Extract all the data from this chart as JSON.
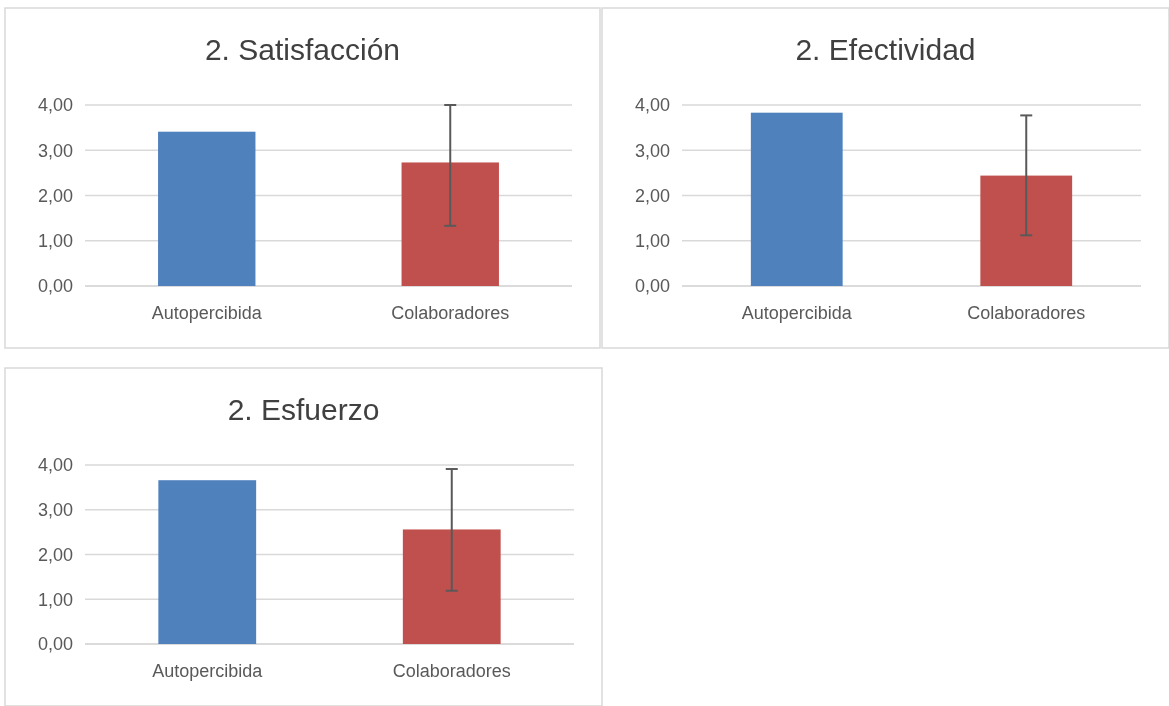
{
  "chart_data": [
    {
      "type": "bar",
      "title": "2. Satisfacción",
      "categories": [
        "Autopercibida",
        "Colaboradores"
      ],
      "values": [
        3.41,
        2.73
      ],
      "colors": [
        "#4f81bd",
        "#c0504d"
      ],
      "errors": [
        null,
        [
          1.33,
          4.0
        ]
      ],
      "ylim": [
        0,
        4
      ],
      "yticks": [
        {
          "value": 0,
          "label": "0,00"
        },
        {
          "value": 1,
          "label": "1,00"
        },
        {
          "value": 2,
          "label": "2,00"
        },
        {
          "value": 3,
          "label": "3,00"
        },
        {
          "value": 4,
          "label": "4,00"
        }
      ],
      "grid": "y"
    },
    {
      "type": "bar",
      "title": "2. Efectividad",
      "categories": [
        "Autopercibida",
        "Colaboradores"
      ],
      "values": [
        3.83,
        2.44
      ],
      "colors": [
        "#4f81bd",
        "#c0504d"
      ],
      "errors": [
        null,
        [
          1.12,
          3.77
        ]
      ],
      "ylim": [
        0,
        4
      ],
      "yticks": [
        {
          "value": 0,
          "label": "0,00"
        },
        {
          "value": 1,
          "label": "1,00"
        },
        {
          "value": 2,
          "label": "2,00"
        },
        {
          "value": 3,
          "label": "3,00"
        },
        {
          "value": 4,
          "label": "4,00"
        }
      ],
      "grid": "y"
    },
    {
      "type": "bar",
      "title": "2. Esfuerzo",
      "categories": [
        "Autopercibida",
        "Colaboradores"
      ],
      "values": [
        3.66,
        2.56
      ],
      "colors": [
        "#4f81bd",
        "#c0504d"
      ],
      "errors": [
        null,
        [
          1.19,
          3.91
        ]
      ],
      "ylim": [
        0,
        4
      ],
      "yticks": [
        {
          "value": 0,
          "label": "0,00"
        },
        {
          "value": 1,
          "label": "1,00"
        },
        {
          "value": 2,
          "label": "2,00"
        },
        {
          "value": 3,
          "label": "3,00"
        },
        {
          "value": 4,
          "label": "4,00"
        }
      ],
      "grid": "y"
    }
  ]
}
